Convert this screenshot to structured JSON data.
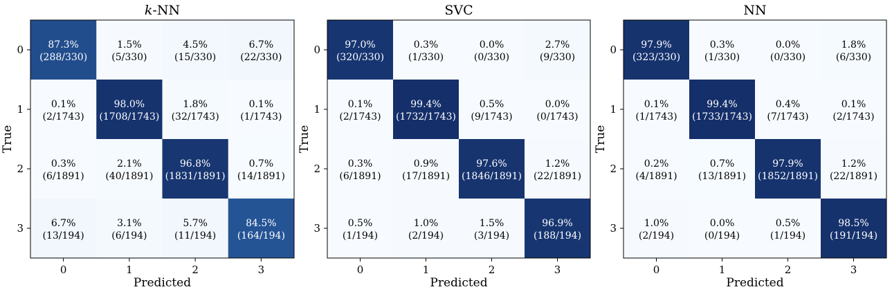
{
  "chart_data": [
    {
      "type": "heatmap",
      "title": "k-NN",
      "title_italic_prefix": "k",
      "title_rest": "-NN",
      "xlabel": "Predicted",
      "ylabel": "True",
      "x_categories": [
        "0",
        "1",
        "2",
        "3"
      ],
      "y_categories": [
        "0",
        "1",
        "2",
        "3"
      ],
      "colormap": "Blues",
      "percent": [
        [
          87.3,
          1.5,
          4.5,
          6.7
        ],
        [
          0.1,
          98.0,
          1.8,
          0.1
        ],
        [
          0.3,
          2.1,
          96.8,
          0.7
        ],
        [
          6.7,
          3.1,
          5.7,
          84.5
        ]
      ],
      "percent_labels": [
        [
          "87.3%",
          "1.5%",
          "4.5%",
          "6.7%"
        ],
        [
          "0.1%",
          "98.0%",
          "1.8%",
          "0.1%"
        ],
        [
          "0.3%",
          "2.1%",
          "96.8%",
          "0.7%"
        ],
        [
          "6.7%",
          "3.1%",
          "5.7%",
          "84.5%"
        ]
      ],
      "count_labels": [
        [
          "(288/330)",
          "(5/330)",
          "(15/330)",
          "(22/330)"
        ],
        [
          "(2/1743)",
          "(1708/1743)",
          "(32/1743)",
          "(1/1743)"
        ],
        [
          "(6/1891)",
          "(40/1891)",
          "(1831/1891)",
          "(14/1891)"
        ],
        [
          "(13/194)",
          "(6/194)",
          "(11/194)",
          "(164/194)"
        ]
      ]
    },
    {
      "type": "heatmap",
      "title": "SVC",
      "title_italic_prefix": "",
      "title_rest": "SVC",
      "xlabel": "Predicted",
      "ylabel": "True",
      "x_categories": [
        "0",
        "1",
        "2",
        "3"
      ],
      "y_categories": [
        "0",
        "1",
        "2",
        "3"
      ],
      "colormap": "Blues",
      "percent": [
        [
          97.0,
          0.3,
          0.0,
          2.7
        ],
        [
          0.1,
          99.4,
          0.5,
          0.0
        ],
        [
          0.3,
          0.9,
          97.6,
          1.2
        ],
        [
          0.5,
          1.0,
          1.5,
          96.9
        ]
      ],
      "percent_labels": [
        [
          "97.0%",
          "0.3%",
          "0.0%",
          "2.7%"
        ],
        [
          "0.1%",
          "99.4%",
          "0.5%",
          "0.0%"
        ],
        [
          "0.3%",
          "0.9%",
          "97.6%",
          "1.2%"
        ],
        [
          "0.5%",
          "1.0%",
          "1.5%",
          "96.9%"
        ]
      ],
      "count_labels": [
        [
          "(320/330)",
          "(1/330)",
          "(0/330)",
          "(9/330)"
        ],
        [
          "(2/1743)",
          "(1732/1743)",
          "(9/1743)",
          "(0/1743)"
        ],
        [
          "(6/1891)",
          "(17/1891)",
          "(1846/1891)",
          "(22/1891)"
        ],
        [
          "(1/194)",
          "(2/194)",
          "(3/194)",
          "(188/194)"
        ]
      ]
    },
    {
      "type": "heatmap",
      "title": "NN",
      "title_italic_prefix": "",
      "title_rest": "NN",
      "xlabel": "Predicted",
      "ylabel": "True",
      "x_categories": [
        "0",
        "1",
        "2",
        "3"
      ],
      "y_categories": [
        "0",
        "1",
        "2",
        "3"
      ],
      "colormap": "Blues",
      "percent": [
        [
          97.9,
          0.3,
          0.0,
          1.8
        ],
        [
          0.1,
          99.4,
          0.4,
          0.1
        ],
        [
          0.2,
          0.7,
          97.9,
          1.2
        ],
        [
          1.0,
          0.0,
          0.5,
          98.5
        ]
      ],
      "percent_labels": [
        [
          "97.9%",
          "0.3%",
          "0.0%",
          "1.8%"
        ],
        [
          "0.1%",
          "99.4%",
          "0.4%",
          "0.1%"
        ],
        [
          "0.2%",
          "0.7%",
          "97.9%",
          "1.2%"
        ],
        [
          "1.0%",
          "0.0%",
          "0.5%",
          "98.5%"
        ]
      ],
      "count_labels": [
        [
          "(323/330)",
          "(1/330)",
          "(0/330)",
          "(6/330)"
        ],
        [
          "(1/1743)",
          "(1733/1743)",
          "(7/1743)",
          "(2/1743)"
        ],
        [
          "(4/1891)",
          "(13/1891)",
          "(1852/1891)",
          "(22/1891)"
        ],
        [
          "(2/194)",
          "(0/194)",
          "(1/194)",
          "(191/194)"
        ]
      ]
    }
  ]
}
